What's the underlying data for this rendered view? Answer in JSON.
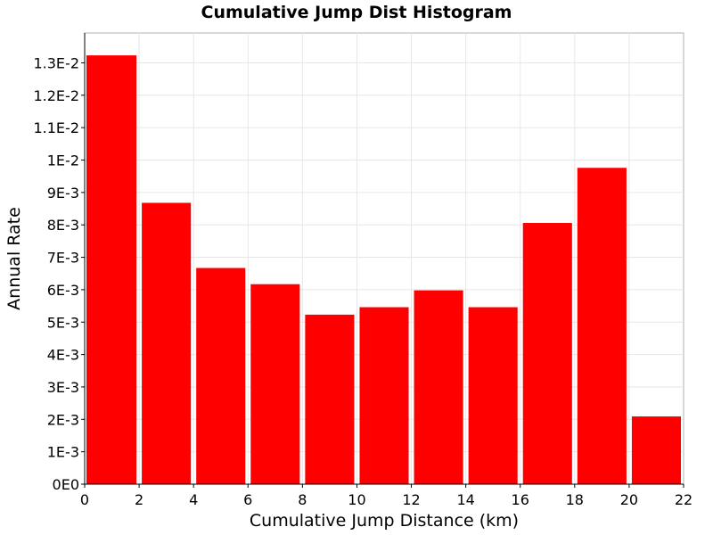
{
  "chart_data": {
    "type": "bar",
    "title": "Cumulative Jump Dist Histogram",
    "xlabel": "Cumulative Jump Distance (km)",
    "ylabel": "Annual Rate",
    "xlim": [
      0,
      22
    ],
    "ylim": [
      0,
      0.0138
    ],
    "x_ticks": [
      0,
      2,
      4,
      6,
      8,
      10,
      12,
      14,
      16,
      18,
      20,
      22
    ],
    "y_ticks": [
      0,
      0.001,
      0.002,
      0.003,
      0.004,
      0.005,
      0.006,
      0.007,
      0.008,
      0.009,
      0.01,
      0.011,
      0.012,
      0.013
    ],
    "y_tick_labels": [
      "0E0",
      "1E-3",
      "2E-3",
      "3E-3",
      "4E-3",
      "5E-3",
      "6E-3",
      "7E-3",
      "8E-3",
      "9E-3",
      "1E-2",
      "1.1E-2",
      "1.2E-2",
      "1.3E-2"
    ],
    "grid": true,
    "bar_color": "#ff0000",
    "bins": [
      {
        "x0": 0,
        "x1": 2,
        "value": 0.01323
      },
      {
        "x0": 2,
        "x1": 4,
        "value": 0.00868
      },
      {
        "x0": 4,
        "x1": 6,
        "value": 0.00667
      },
      {
        "x0": 6,
        "x1": 8,
        "value": 0.00617
      },
      {
        "x0": 8,
        "x1": 10,
        "value": 0.00523
      },
      {
        "x0": 10,
        "x1": 12,
        "value": 0.00546
      },
      {
        "x0": 12,
        "x1": 14,
        "value": 0.00598
      },
      {
        "x0": 14,
        "x1": 16,
        "value": 0.00546
      },
      {
        "x0": 16,
        "x1": 18,
        "value": 0.00806
      },
      {
        "x0": 18,
        "x1": 20,
        "value": 0.00976
      },
      {
        "x0": 20,
        "x1": 22,
        "value": 0.00209
      }
    ]
  }
}
